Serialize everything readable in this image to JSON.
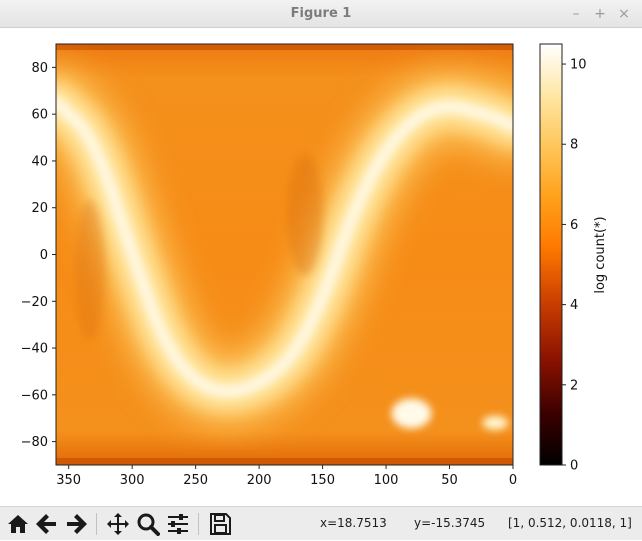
{
  "window": {
    "title": "Figure 1",
    "buttons": {
      "minimize": "–",
      "maximize": "+",
      "close": "×"
    }
  },
  "chart_data": {
    "type": "heatmap",
    "title": "",
    "xlabel": "",
    "ylabel": "",
    "xlim": [
      360,
      0
    ],
    "ylim": [
      -90,
      90
    ],
    "x_ticks": [
      350,
      300,
      250,
      200,
      150,
      100,
      50,
      0
    ],
    "y_ticks": [
      80,
      60,
      40,
      20,
      0,
      -20,
      -40,
      -60,
      -80
    ],
    "colormap": "afmhot",
    "colorbar": {
      "label": "log count(*)",
      "range": [
        0,
        10.5
      ],
      "ticks": [
        0,
        2,
        4,
        6,
        8,
        10
      ]
    },
    "features": [
      {
        "name": "galactic-plane-band",
        "shape": "sinusoid",
        "peak_value": 9.5,
        "path_lon_lat": [
          [
            360,
            65
          ],
          [
            330,
            50
          ],
          [
            300,
            0
          ],
          [
            270,
            -45
          ],
          [
            230,
            -62
          ],
          [
            180,
            -50
          ],
          [
            150,
            -20
          ],
          [
            125,
            20
          ],
          [
            95,
            50
          ],
          [
            60,
            65
          ],
          [
            20,
            60
          ],
          [
            0,
            55
          ]
        ]
      },
      {
        "name": "large-magellanic-cloud",
        "lon": 80,
        "lat": -68,
        "value": 10.2
      },
      {
        "name": "small-magellanic-cloud",
        "lon": 14,
        "lat": -72,
        "value": 9.6
      },
      {
        "name": "background",
        "value": 6.3
      }
    ]
  },
  "toolbar": {
    "buttons": [
      {
        "name": "home-button",
        "icon": "home-icon"
      },
      {
        "name": "back-button",
        "icon": "arrow-left-icon"
      },
      {
        "name": "forward-button",
        "icon": "arrow-right-icon"
      },
      {
        "name": "pan-button",
        "icon": "pan-icon"
      },
      {
        "name": "zoom-button",
        "icon": "zoom-icon"
      },
      {
        "name": "configure-subplots-button",
        "icon": "sliders-icon"
      },
      {
        "name": "save-button",
        "icon": "save-icon"
      }
    ],
    "readout_x": "x=18.7513",
    "readout_y": "y=-15.3745",
    "readout_rgba": "[1, 0.512, 0.0118, 1]"
  }
}
